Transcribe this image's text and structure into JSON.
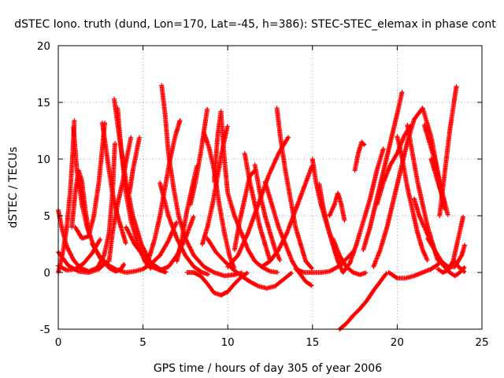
{
  "chart_data": {
    "type": "scatter",
    "title": "dSTEC Iono. truth (dund, Lon=170, Lat=-45, h=386): STEC-STEC_elemax in phase cont",
    "xlabel": "GPS time / hours of day 305 of year 2006",
    "ylabel": "dSTEC  / TECUs",
    "xlim": [
      0,
      25
    ],
    "ylim": [
      -5,
      20
    ],
    "xticks": [
      0,
      5,
      10,
      15,
      20,
      25
    ],
    "yticks": [
      -5,
      0,
      5,
      10,
      15,
      20
    ],
    "grid": true,
    "marker": "+",
    "color": "#ff0000",
    "series": [
      {
        "x": [
          0.0,
          0.2,
          0.5,
          0.9,
          1.3,
          1.8,
          2.3,
          2.7,
          3.0,
          3.2,
          3.35
        ],
        "y": [
          5.5,
          4.0,
          2.3,
          1.1,
          0.4,
          0.1,
          0.4,
          1.5,
          3.5,
          7.0,
          11.5
        ]
      },
      {
        "x": [
          0.0,
          0.1,
          0.3,
          0.5,
          0.7,
          0.85,
          0.95
        ],
        "y": [
          0.0,
          0.6,
          2.0,
          4.0,
          7.0,
          10.5,
          13.5
        ]
      },
      {
        "x": [
          0.9,
          1.1,
          1.4,
          1.7,
          2.1,
          2.5,
          3.0,
          3.4,
          3.7,
          3.9
        ],
        "y": [
          12.8,
          9.0,
          6.0,
          4.0,
          2.3,
          1.2,
          0.4,
          0.1,
          0.3,
          0.8
        ]
      },
      {
        "x": [
          0.0,
          0.5,
          1.0,
          1.5,
          2.0,
          2.5
        ],
        "y": [
          0.6,
          0.2,
          0.3,
          0.8,
          1.7,
          3.0
        ]
      },
      {
        "x": [
          0.0,
          0.6,
          1.2,
          1.8,
          2.4,
          2.9
        ],
        "y": [
          1.8,
          0.6,
          0.1,
          0.0,
          0.3,
          1.0
        ]
      },
      {
        "x": [
          1.0,
          1.4,
          1.8,
          2.1,
          2.4,
          2.6,
          2.75
        ],
        "y": [
          4.0,
          3.0,
          3.2,
          5.0,
          8.0,
          11.0,
          13.3
        ]
      },
      {
        "x": [
          0.8,
          1.0,
          1.2,
          1.4,
          1.6,
          1.8
        ],
        "y": [
          4.0,
          7.0,
          9.0,
          8.0,
          5.5,
          3.5
        ]
      },
      {
        "x": [
          3.3,
          3.6,
          4.0,
          4.4,
          4.9,
          5.4,
          6.0,
          6.4
        ],
        "y": [
          15.3,
          12.0,
          8.0,
          5.0,
          2.5,
          1.0,
          0.2,
          0.0
        ]
      },
      {
        "x": [
          3.5,
          3.7,
          4.0,
          4.3,
          4.7,
          5.1,
          5.5
        ],
        "y": [
          14.5,
          11.0,
          7.0,
          4.5,
          2.5,
          1.0,
          0.3
        ]
      },
      {
        "x": [
          2.6,
          2.9,
          3.2,
          3.5,
          3.8,
          4.0
        ],
        "y": [
          13.2,
          10.0,
          7.0,
          5.0,
          3.5,
          2.5
        ]
      },
      {
        "x": [
          3.0,
          3.2,
          3.5,
          3.8,
          4.0,
          4.3
        ],
        "y": [
          1.0,
          3.5,
          6.0,
          8.0,
          9.8,
          12.0
        ]
      },
      {
        "x": [
          4.2,
          4.4,
          4.6,
          4.8
        ],
        "y": [
          7.0,
          9.0,
          10.5,
          12.0
        ]
      },
      {
        "x": [
          2.0,
          2.5,
          3.0,
          3.5,
          4.0,
          4.5,
          5.0,
          5.5,
          6.0,
          6.5,
          7.0
        ],
        "y": [
          2.5,
          1.3,
          0.6,
          0.2,
          0.0,
          0.1,
          0.3,
          0.8,
          1.5,
          2.8,
          4.5
        ]
      },
      {
        "x": [
          4.0,
          4.5,
          5.0,
          5.5,
          6.0,
          6.4
        ],
        "y": [
          4.0,
          2.5,
          1.5,
          0.8,
          0.3,
          0.0
        ]
      },
      {
        "x": [
          6.1,
          6.3,
          6.5,
          6.8,
          7.1,
          7.5,
          8.0,
          8.6,
          9.2,
          9.8,
          10.4,
          10.9
        ],
        "y": [
          16.5,
          14.0,
          10.5,
          7.5,
          5.0,
          3.0,
          1.5,
          0.5,
          0.0,
          -0.3,
          -0.2,
          0.0
        ]
      },
      {
        "x": [
          5.2,
          5.4,
          5.7,
          6.0,
          6.3,
          6.6,
          6.9,
          7.2
        ],
        "y": [
          0.5,
          1.5,
          3.0,
          5.0,
          7.5,
          10.0,
          12.0,
          13.5
        ]
      },
      {
        "x": [
          6.0,
          6.5,
          7.0,
          7.5,
          8.0,
          8.5,
          8.9
        ],
        "y": [
          7.9,
          5.0,
          3.0,
          1.5,
          0.5,
          0.0,
          -0.2
        ]
      },
      {
        "x": [
          5.0,
          5.5,
          6.0,
          6.5,
          7.0,
          7.5,
          8.0
        ],
        "y": [
          1.5,
          0.5,
          0.2,
          0.5,
          1.5,
          3.0,
          5.0
        ]
      },
      {
        "x": [
          7.0,
          7.3,
          7.6,
          7.9,
          8.2
        ],
        "y": [
          1.0,
          3.0,
          5.5,
          7.5,
          9.5
        ]
      },
      {
        "x": [
          7.8,
          8.1,
          8.4,
          8.6,
          8.8
        ],
        "y": [
          6.0,
          8.0,
          10.5,
          12.5,
          14.5
        ]
      },
      {
        "x": [
          7.6,
          8.0,
          8.4,
          8.8,
          9.2,
          9.6,
          10.0,
          10.4,
          10.8,
          11.2
        ],
        "y": [
          0.0,
          0.0,
          -0.3,
          -1.0,
          -1.8,
          -2.0,
          -1.7,
          -1.0,
          -0.4,
          0.0
        ]
      },
      {
        "x": [
          8.6,
          8.9,
          9.2,
          9.5,
          9.8,
          10.1,
          10.4
        ],
        "y": [
          12.3,
          11.0,
          9.0,
          6.0,
          3.5,
          1.5,
          0.3
        ]
      },
      {
        "x": [
          9.2,
          9.4,
          9.6,
          9.8,
          10.0
        ],
        "y": [
          8.0,
          12.0,
          14.2,
          10.0,
          7.0
        ]
      },
      {
        "x": [
          8.5,
          8.8,
          9.1,
          9.4,
          9.7,
          10.0
        ],
        "y": [
          2.5,
          4.0,
          6.0,
          8.5,
          11.0,
          13.0
        ]
      },
      {
        "x": [
          10.0,
          10.4,
          10.8,
          11.2,
          11.6,
          12.0,
          12.5,
          13.0
        ],
        "y": [
          7.0,
          5.0,
          3.5,
          2.0,
          1.0,
          0.5,
          0.1,
          0.0
        ]
      },
      {
        "x": [
          10.0,
          10.6,
          11.2,
          11.8,
          12.4,
          13.0,
          13.6
        ],
        "y": [
          0.5,
          1.5,
          3.5,
          6.0,
          8.5,
          10.5,
          12.0
        ]
      },
      {
        "x": [
          11.0,
          11.3,
          11.6,
          11.9,
          12.2,
          12.5
        ],
        "y": [
          10.5,
          8.0,
          6.0,
          4.0,
          2.5,
          1.0
        ]
      },
      {
        "x": [
          10.4,
          10.7,
          11.0,
          11.3,
          11.6
        ],
        "y": [
          2.0,
          4.5,
          6.5,
          8.5,
          9.0
        ]
      },
      {
        "x": [
          11.6,
          11.9,
          12.2,
          12.5,
          12.8,
          13.1
        ],
        "y": [
          9.5,
          7.0,
          5.0,
          3.5,
          2.0,
          1.0
        ]
      },
      {
        "x": [
          8.8,
          9.3,
          9.8,
          10.3,
          10.8,
          11.3,
          11.8,
          12.3,
          12.8,
          13.3,
          13.8
        ],
        "y": [
          3.0,
          1.8,
          1.0,
          0.3,
          -0.3,
          -0.8,
          -1.2,
          -1.4,
          -1.2,
          -0.6,
          0.0
        ]
      },
      {
        "x": [
          12.9,
          13.1,
          13.4,
          13.7,
          14.0,
          14.3,
          14.6,
          15.0
        ],
        "y": [
          14.5,
          12.0,
          9.0,
          6.5,
          4.0,
          2.5,
          1.0,
          0.3
        ]
      },
      {
        "x": [
          12.2,
          12.6,
          13.0,
          13.4,
          13.8,
          14.2,
          14.6,
          15.0
        ],
        "y": [
          8.0,
          6.0,
          4.0,
          2.5,
          1.0,
          0.0,
          -0.8,
          -1.2
        ]
      },
      {
        "x": [
          12.0,
          12.5,
          13.0,
          13.5,
          14.0,
          14.5,
          15.0
        ],
        "y": [
          0.5,
          1.0,
          2.0,
          3.5,
          5.5,
          7.5,
          9.5
        ]
      },
      {
        "x": [
          14.0,
          14.5,
          15.0,
          15.5,
          16.0,
          16.5,
          17.0,
          17.5
        ],
        "y": [
          0.3,
          0.0,
          0.0,
          0.0,
          0.1,
          0.5,
          1.2,
          2.0
        ]
      },
      {
        "x": [
          15.0,
          15.2,
          15.5,
          15.8,
          16.1,
          16.4,
          16.7
        ],
        "y": [
          10.0,
          8.0,
          6.0,
          4.5,
          3.0,
          1.5,
          0.5
        ]
      },
      {
        "x": [
          15.4,
          15.6,
          15.9,
          16.2,
          16.5,
          16.8
        ],
        "y": [
          7.8,
          6.0,
          4.0,
          2.5,
          1.0,
          0.0
        ]
      },
      {
        "x": [
          16.0,
          16.3,
          16.5,
          16.7,
          16.9
        ],
        "y": [
          5.0,
          6.0,
          7.0,
          6.0,
          4.5
        ]
      },
      {
        "x": [
          16.2,
          16.6,
          17.0,
          17.4,
          17.8,
          18.2
        ],
        "y": [
          3.0,
          1.5,
          0.5,
          0.0,
          -0.2,
          0.0
        ]
      },
      {
        "x": [
          16.6,
          17.0,
          17.4,
          17.8,
          18.2,
          18.6,
          19.0,
          19.4
        ],
        "y": [
          -5.0,
          -4.5,
          -3.8,
          -3.2,
          -2.5,
          -1.6,
          -0.8,
          0.0
        ]
      },
      {
        "x": [
          16.8,
          17.2,
          17.6,
          18.0,
          18.4,
          18.8,
          19.2
        ],
        "y": [
          0.0,
          0.8,
          2.5,
          4.5,
          6.5,
          9.0,
          11.0
        ]
      },
      {
        "x": [
          17.5,
          17.7,
          17.9,
          18.1
        ],
        "y": [
          9.0,
          10.5,
          11.5,
          11.2
        ]
      },
      {
        "x": [
          18.0,
          18.4,
          18.8,
          19.2,
          19.6,
          20.0,
          20.3
        ],
        "y": [
          2.0,
          4.0,
          6.5,
          9.0,
          11.5,
          14.0,
          16.0
        ]
      },
      {
        "x": [
          18.6,
          19.0,
          19.4,
          19.8,
          20.2,
          20.6,
          21.0,
          21.5,
          22.0,
          22.5,
          23.0
        ],
        "y": [
          0.5,
          2.0,
          4.0,
          6.5,
          9.0,
          11.5,
          13.5,
          14.5,
          12.0,
          8.0,
          5.0
        ]
      },
      {
        "x": [
          18.8,
          19.2,
          19.6,
          20.0,
          20.4,
          20.8
        ],
        "y": [
          6.0,
          8.0,
          9.5,
          10.5,
          12.0,
          13.0
        ]
      },
      {
        "x": [
          19.5,
          20.0,
          20.5,
          21.0,
          21.5,
          22.0,
          22.5
        ],
        "y": [
          0.0,
          -0.5,
          -0.5,
          -0.3,
          0.0,
          0.3,
          0.8
        ]
      },
      {
        "x": [
          20.0,
          20.3,
          20.6,
          20.9,
          21.2,
          21.5,
          21.8
        ],
        "y": [
          12.0,
          10.0,
          7.5,
          5.5,
          3.5,
          2.0,
          1.0
        ]
      },
      {
        "x": [
          20.6,
          20.9,
          21.2,
          21.5,
          21.8,
          22.1,
          22.4
        ],
        "y": [
          13.0,
          10.5,
          8.0,
          6.0,
          4.0,
          2.5,
          1.0
        ]
      },
      {
        "x": [
          21.0,
          21.3,
          21.6,
          21.9,
          22.2,
          22.5,
          22.8,
          23.1,
          23.4,
          23.7,
          24.0
        ],
        "y": [
          6.5,
          5.0,
          4.0,
          3.0,
          2.0,
          1.0,
          0.5,
          0.0,
          -0.3,
          0.0,
          0.5
        ]
      },
      {
        "x": [
          21.6,
          21.8,
          22.0,
          22.2,
          22.4,
          22.6,
          22.8
        ],
        "y": [
          13.0,
          12.0,
          11.0,
          10.0,
          8.5,
          7.0,
          5.5
        ]
      },
      {
        "x": [
          22.0,
          22.2,
          22.4,
          22.6,
          22.8
        ],
        "y": [
          10.0,
          9.0,
          8.0,
          7.0,
          6.0
        ]
      },
      {
        "x": [
          22.5,
          22.7,
          22.9,
          23.1,
          23.3,
          23.5
        ],
        "y": [
          5.0,
          7.5,
          10.0,
          12.5,
          14.5,
          16.5
        ]
      },
      {
        "x": [
          22.4,
          22.7,
          23.0,
          23.3,
          23.6,
          23.9
        ],
        "y": [
          0.3,
          0.0,
          0.2,
          1.0,
          3.0,
          5.0
        ]
      },
      {
        "x": [
          21.8,
          22.2,
          22.6,
          23.0,
          23.4,
          23.8,
          24.0
        ],
        "y": [
          3.0,
          2.0,
          1.0,
          0.5,
          0.5,
          1.5,
          2.5
        ]
      },
      {
        "x": [
          23.4,
          23.6,
          23.8,
          24.0
        ],
        "y": [
          1.0,
          0.5,
          0.3,
          0.0
        ]
      }
    ]
  }
}
